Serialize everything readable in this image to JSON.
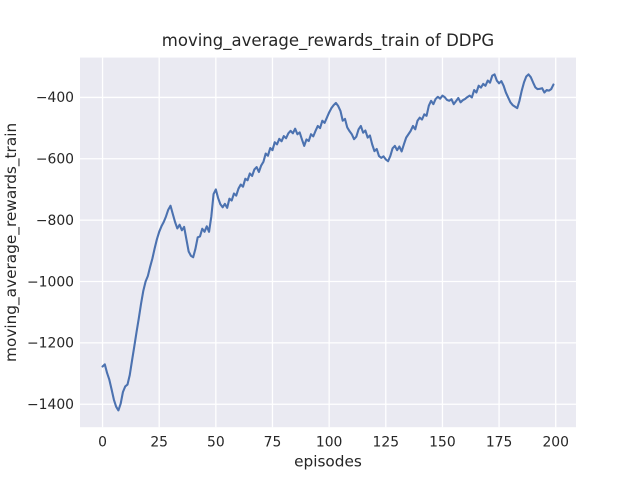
{
  "chart_data": {
    "type": "line",
    "title": "moving_average_rewards_train of DDPG",
    "xlabel": "episodes",
    "ylabel": "moving_average_rewards_train",
    "series_name": "moving_average_rewards_train",
    "x_start": 0,
    "x_step": 1,
    "values": [
      -1277,
      -1270,
      -1298,
      -1320,
      -1352,
      -1385,
      -1408,
      -1420,
      -1398,
      -1360,
      -1342,
      -1336,
      -1305,
      -1258,
      -1212,
      -1165,
      -1120,
      -1072,
      -1030,
      -1000,
      -982,
      -952,
      -925,
      -892,
      -862,
      -838,
      -820,
      -806,
      -788,
      -766,
      -753,
      -780,
      -806,
      -827,
      -815,
      -833,
      -822,
      -862,
      -902,
      -916,
      -921,
      -893,
      -856,
      -853,
      -828,
      -838,
      -820,
      -838,
      -788,
      -715,
      -700,
      -728,
      -748,
      -758,
      -747,
      -760,
      -730,
      -736,
      -713,
      -720,
      -697,
      -684,
      -691,
      -665,
      -670,
      -648,
      -656,
      -635,
      -627,
      -643,
      -622,
      -610,
      -583,
      -590,
      -565,
      -572,
      -546,
      -553,
      -535,
      -543,
      -526,
      -533,
      -517,
      -509,
      -517,
      -502,
      -520,
      -514,
      -537,
      -558,
      -537,
      -542,
      -520,
      -527,
      -509,
      -493,
      -500,
      -476,
      -483,
      -466,
      -449,
      -435,
      -425,
      -418,
      -428,
      -444,
      -476,
      -470,
      -498,
      -510,
      -520,
      -536,
      -528,
      -504,
      -493,
      -515,
      -508,
      -531,
      -524,
      -553,
      -575,
      -568,
      -591,
      -597,
      -592,
      -602,
      -608,
      -591,
      -566,
      -558,
      -572,
      -560,
      -576,
      -553,
      -531,
      -520,
      -509,
      -493,
      -504,
      -476,
      -466,
      -472,
      -455,
      -460,
      -427,
      -411,
      -422,
      -405,
      -398,
      -404,
      -394,
      -399,
      -408,
      -411,
      -406,
      -422,
      -412,
      -402,
      -416,
      -409,
      -405,
      -399,
      -394,
      -400,
      -376,
      -384,
      -362,
      -368,
      -356,
      -362,
      -345,
      -352,
      -329,
      -325,
      -345,
      -354,
      -347,
      -362,
      -384,
      -400,
      -416,
      -425,
      -430,
      -435,
      -411,
      -378,
      -351,
      -332,
      -325,
      -334,
      -351,
      -367,
      -373,
      -372,
      -370,
      -384,
      -376,
      -378,
      -373,
      -358
    ],
    "xticks": [
      0,
      25,
      50,
      75,
      100,
      125,
      150,
      175,
      200
    ],
    "xtick_labels": [
      "0",
      "25",
      "50",
      "75",
      "100",
      "125",
      "150",
      "175",
      "200"
    ],
    "yticks": [
      -400,
      -600,
      -800,
      -1000,
      -1200,
      -1400
    ],
    "ytick_labels": [
      "−400",
      "−600",
      "−800",
      "−1000",
      "−1200",
      "−1400"
    ],
    "xlim": [
      -9.95,
      208.95
    ],
    "ylim": [
      -1474.75,
      -270.25
    ],
    "grid": true,
    "legend": null,
    "colors": {
      "figure_bg": "#ffffff",
      "plot_bg": "#EAEAF2",
      "grid": "#ffffff",
      "line": "#4C72B0",
      "text": "#262626"
    }
  }
}
